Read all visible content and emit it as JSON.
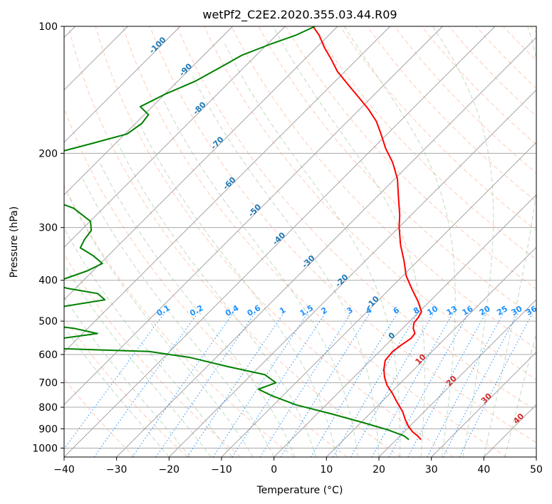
{
  "chart_data": {
    "type": "line",
    "subtype": "skew-t log-p diagram",
    "title": "wetPf2_C2E2.2020.355.03.44.R09",
    "xlabel": "Temperature (°C)",
    "ylabel": "Pressure (hPa)",
    "xlim": [
      -40,
      50
    ],
    "ylim": [
      1050,
      100
    ],
    "y_scale": "log",
    "grid": true,
    "x_ticks": [
      -40,
      -30,
      -20,
      -10,
      0,
      10,
      20,
      30,
      40,
      50
    ],
    "x_tick_labels": [
      "−40",
      "−30",
      "−20",
      "−10",
      "0",
      "10",
      "20",
      "30",
      "40",
      "50"
    ],
    "y_ticks": [
      100,
      200,
      300,
      400,
      500,
      600,
      700,
      800,
      900,
      1000
    ],
    "y_tick_labels": [
      "100",
      "200",
      "300",
      "400",
      "500",
      "600",
      "700",
      "800",
      "900",
      "1000"
    ],
    "colors": {
      "temperature": "#ff0000",
      "dewpoint": "#008000",
      "isotherm_label": "#1f77b4",
      "mixing_ratio": "#1e90ff",
      "dry_adiabat": "#ffa07a",
      "moist_adiabat": "#8fbc8f",
      "high_temp_label": "#d62728"
    },
    "isotherm_labels": [
      {
        "t": -100,
        "p": 112
      },
      {
        "t": -90,
        "p": 128
      },
      {
        "t": -80,
        "p": 158
      },
      {
        "t": -70,
        "p": 191
      },
      {
        "t": -60,
        "p": 238
      },
      {
        "t": -50,
        "p": 276
      },
      {
        "t": -40,
        "p": 322
      },
      {
        "t": -30,
        "p": 365
      },
      {
        "t": -20,
        "p": 405
      },
      {
        "t": -10,
        "p": 456
      },
      {
        "t": 0,
        "p": 547
      }
    ],
    "high_isotherm_labels": [
      {
        "t": 10,
        "p": 622
      },
      {
        "t": 20,
        "p": 700
      },
      {
        "t": 30,
        "p": 770
      },
      {
        "t": 40,
        "p": 860
      }
    ],
    "mixing_ratio_values": [
      0.1,
      0.2,
      0.4,
      0.6,
      1,
      1.5,
      2,
      3,
      4,
      6,
      8,
      10,
      13,
      16,
      20,
      25,
      30,
      36
    ],
    "mixing_ratio_labels": [
      "0.1",
      "0.2",
      "0.4",
      "0.6",
      "1",
      "1.5",
      "2",
      "3",
      "4",
      "6",
      "8",
      "10",
      "13",
      "16",
      "20",
      "25",
      "30",
      "36"
    ],
    "series": [
      {
        "key": "temperature",
        "p": [
          100,
          105,
          112,
          120,
          128,
          137,
          147,
          157,
          168,
          180,
          195,
          210,
          230,
          255,
          280,
          300,
          330,
          360,
          390,
          420,
          450,
          475,
          490,
          505,
          520,
          535,
          550,
          570,
          590,
          620,
          650,
          680,
          710,
          740,
          780,
          820,
          860,
          890,
          915,
          935,
          955
        ],
        "t": [
          -74.7,
          -71.8,
          -68.6,
          -64.8,
          -61.4,
          -57.1,
          -52.6,
          -48.4,
          -44.5,
          -41.2,
          -37.5,
          -33.6,
          -29.5,
          -25.7,
          -22.2,
          -19.9,
          -16.3,
          -12.6,
          -9.4,
          -5.7,
          -2.1,
          0.4,
          0.9,
          1.1,
          2.0,
          3.3,
          3.5,
          2.9,
          2.5,
          2.8,
          4.2,
          5.9,
          7.9,
          10.3,
          13.1,
          15.9,
          18.1,
          19.9,
          21.6,
          23.3,
          24.7
        ]
      },
      {
        "key": "dewpoint",
        "p": [
          100,
          105,
          110,
          117,
          125,
          135,
          145,
          155,
          162,
          170,
          180,
          190,
          200,
          212,
          222,
          230,
          240,
          255,
          270,
          290,
          305,
          320,
          335,
          350,
          365,
          380,
          395,
          407,
          418,
          430,
          445,
          460,
          475,
          490,
          505,
          520,
          535,
          550,
          565,
          575,
          590,
          610,
          640,
          670,
          700,
          725,
          750,
          790,
          830,
          870,
          905,
          935,
          955
        ],
        "t": [
          -74.3,
          -76.3,
          -79.3,
          -82.7,
          -84.5,
          -86.7,
          -90.0,
          -92.3,
          -89.2,
          -88.8,
          -89.6,
          -94.7,
          -99.7,
          -104.2,
          -110.0,
          -109.1,
          -101.6,
          -92.9,
          -85.6,
          -79.9,
          -78.0,
          -77.6,
          -76.8,
          -72.8,
          -69.6,
          -71.1,
          -73.6,
          -75.6,
          -71.6,
          -64.8,
          -62.2,
          -68.2,
          -73.3,
          -76.3,
          -72.0,
          -62.7,
          -57.2,
          -63.3,
          -78.4,
          -73.2,
          -43.9,
          -34.9,
          -26.3,
          -17.4,
          -13.8,
          -15.9,
          -12.3,
          -5.7,
          2.8,
          10.4,
          16.5,
          20.7,
          22.4
        ]
      }
    ]
  }
}
